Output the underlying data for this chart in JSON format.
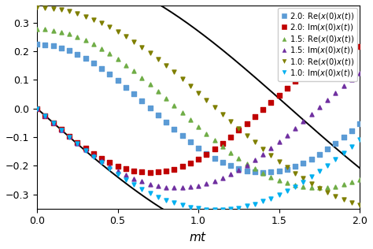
{
  "xlabel": "$mt$",
  "xlim": [
    0.0,
    2.0
  ],
  "ylim": [
    -0.35,
    0.36
  ],
  "xticks": [
    0.0,
    0.5,
    1.0,
    1.5,
    2.0
  ],
  "yticks": [
    -0.3,
    -0.2,
    -0.1,
    0.0,
    0.1,
    0.2,
    0.3
  ],
  "masses": [
    2.0,
    1.5,
    1.0
  ],
  "re_colors": [
    "#5B9BD5",
    "#70AD47",
    "#7F7F00"
  ],
  "im_colors": [
    "#C00000",
    "#7030A0",
    "#00B0F0"
  ],
  "re_markers": [
    "s",
    "^",
    "v"
  ],
  "im_markers": [
    "s",
    "^",
    "v"
  ],
  "n_points": 41,
  "t_max": 2.0,
  "ref_color": "black",
  "ref_lw": 1.4,
  "figsize": [
    4.74,
    3.16
  ],
  "dpi": 100,
  "legend_fontsize": 7.2,
  "marker_size": 13
}
